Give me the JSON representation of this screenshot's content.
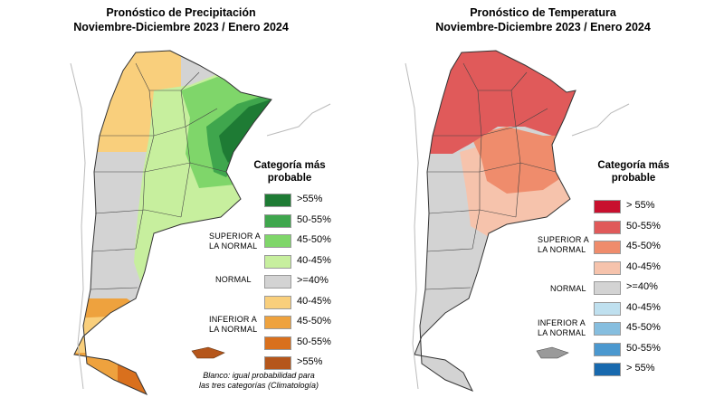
{
  "precip": {
    "title_line1": "Pronóstico de Precipitación",
    "title_line2": "Noviembre-Diciembre 2023 / Enero 2024",
    "legend_title_1": "Categoría más",
    "legend_title_2": "probable",
    "group_superior_1": "SUPERIOR A",
    "group_superior_2": "LA NORMAL",
    "group_normal": "NORMAL",
    "group_inferior_1": "INFERIOR A",
    "group_inferior_2": "LA NORMAL",
    "legend": [
      {
        "label": ">55%",
        "color": "#1e7b34"
      },
      {
        "label": "50-55%",
        "color": "#3fa64d"
      },
      {
        "label": "45-50%",
        "color": "#7fd66a"
      },
      {
        "label": "40-45%",
        "color": "#c7ef9e"
      },
      {
        "label": ">=40%",
        "color": "#d3d3d3"
      },
      {
        "label": "40-45%",
        "color": "#f9cf7c"
      },
      {
        "label": "45-50%",
        "color": "#eea23e"
      },
      {
        "label": "50-55%",
        "color": "#d9701d"
      },
      {
        "label": ">55%",
        "color": "#b5561b"
      }
    ],
    "note_line1": "Blanco: igual probabilidad para",
    "note_line2": "las tres categorías (Climatología)"
  },
  "temp": {
    "title_line1": "Pronóstico de Temperatura",
    "title_line2": "Noviembre-Diciembre 2023 / Enero 2024",
    "legend_title_1": "Categoría más",
    "legend_title_2": "probable",
    "group_superior_1": "SUPERIOR A",
    "group_superior_2": "LA NORMAL",
    "group_normal": "NORMAL",
    "group_inferior_1": "INFERIOR A",
    "group_inferior_2": "LA NORMAL",
    "legend": [
      {
        "label": "> 55%",
        "color": "#c8102e"
      },
      {
        "label": "50-55%",
        "color": "#e05a5a"
      },
      {
        "label": "45-50%",
        "color": "#ef8c6c"
      },
      {
        "label": "40-45%",
        "color": "#f6c3ac"
      },
      {
        "label": ">=40%",
        "color": "#d3d3d3"
      },
      {
        "label": "40-45%",
        "color": "#bfe0ef"
      },
      {
        "label": "45-50%",
        "color": "#86bedf"
      },
      {
        "label": "50-55%",
        "color": "#4b98cf"
      },
      {
        "label": "> 55%",
        "color": "#1869ae"
      }
    ]
  }
}
